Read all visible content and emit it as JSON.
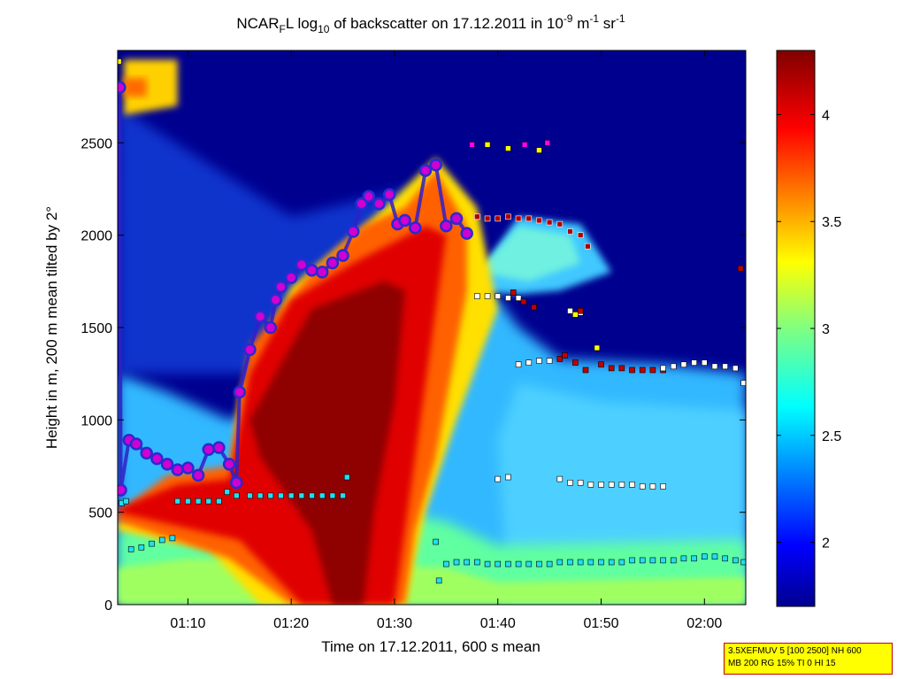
{
  "title": {
    "parts": [
      {
        "text": "NCAR",
        "baseline": "normal"
      },
      {
        "text": "F",
        "baseline": "sub"
      },
      {
        "text": "L log",
        "baseline": "normal"
      },
      {
        "text": "10",
        "baseline": "sub"
      },
      {
        "text": " of backscatter on 17.12.2011 in 10",
        "baseline": "normal"
      },
      {
        "text": "-9",
        "baseline": "super"
      },
      {
        "text": " m",
        "baseline": "normal"
      },
      {
        "text": "-1",
        "baseline": "super"
      },
      {
        "text": " sr",
        "baseline": "normal"
      },
      {
        "text": "-1",
        "baseline": "super"
      }
    ]
  },
  "info_box": {
    "line1": "3.5XEFMUV 5 [100 2500] NH 600",
    "line2": "MB 200 RG 15% TI 0 HI 15"
  },
  "chart_data": {
    "type": "heatmap",
    "xlabel": "Time on 17.12.2011, 600 s mean",
    "ylabel": "Height in m, 200 m mean tilted by 2°",
    "x_unit": "minutes since 01:00",
    "xlim": [
      3.2,
      64.0
    ],
    "ylim": [
      0,
      3000
    ],
    "xticks": [
      {
        "value": 10,
        "label": "01:10"
      },
      {
        "value": 20,
        "label": "01:20"
      },
      {
        "value": 30,
        "label": "01:30"
      },
      {
        "value": 40,
        "label": "01:40"
      },
      {
        "value": 50,
        "label": "01:50"
      },
      {
        "value": 60,
        "label": "02:00"
      }
    ],
    "yticks": [
      {
        "value": 0,
        "label": "0"
      },
      {
        "value": 500,
        "label": "500"
      },
      {
        "value": 1000,
        "label": "1000"
      },
      {
        "value": 1500,
        "label": "1500"
      },
      {
        "value": 2000,
        "label": "2000"
      },
      {
        "value": 2500,
        "label": "2500"
      }
    ],
    "colorbar": {
      "colormap": "jet",
      "clim": [
        1.7,
        4.3
      ],
      "ticks": [
        {
          "value": 2,
          "label": "2"
        },
        {
          "value": 2.5,
          "label": "2.5"
        },
        {
          "value": 3,
          "label": "3"
        },
        {
          "value": 3.5,
          "label": "3.5"
        },
        {
          "value": 4,
          "label": "4"
        }
      ]
    },
    "grid": false,
    "features": [
      {
        "kind": "top_of_layer",
        "points": [
          [
            3.4,
            2800
          ],
          [
            3.5,
            620
          ],
          [
            4.3,
            890
          ],
          [
            5.0,
            870
          ],
          [
            6.0,
            820
          ],
          [
            7.0,
            790
          ],
          [
            8.0,
            760
          ],
          [
            9.0,
            730
          ],
          [
            10.0,
            740
          ],
          [
            11.0,
            700
          ],
          [
            12.0,
            840
          ],
          [
            13.0,
            850
          ],
          [
            14.0,
            760
          ],
          [
            14.7,
            660
          ],
          [
            15.0,
            1150
          ],
          [
            16.0,
            1380
          ],
          [
            17.0,
            1560
          ],
          [
            18.0,
            1500
          ],
          [
            18.5,
            1650
          ],
          [
            19.0,
            1720
          ],
          [
            20.0,
            1770
          ],
          [
            21.0,
            1840
          ],
          [
            22.0,
            1810
          ],
          [
            23.0,
            1800
          ],
          [
            24.0,
            1850
          ],
          [
            25.0,
            1890
          ],
          [
            26.0,
            2020
          ],
          [
            26.8,
            2170
          ],
          [
            27.5,
            2210
          ],
          [
            28.5,
            2170
          ],
          [
            29.5,
            2220
          ],
          [
            30.3,
            2060
          ],
          [
            31.0,
            2080
          ],
          [
            32.0,
            2040
          ],
          [
            33.0,
            2350
          ],
          [
            34.0,
            2380
          ],
          [
            35.0,
            2050
          ],
          [
            36.0,
            2090
          ],
          [
            37.0,
            2010
          ]
        ]
      },
      {
        "kind": "layer_top_dark_red",
        "points": [
          [
            38.0,
            2100
          ],
          [
            39.0,
            2090
          ],
          [
            40.0,
            2090
          ],
          [
            41.0,
            2100
          ],
          [
            42.0,
            2090
          ],
          [
            43.0,
            2090
          ],
          [
            44.0,
            2080
          ],
          [
            45.0,
            2070
          ],
          [
            46.0,
            2060
          ],
          [
            47.0,
            2020
          ],
          [
            48.0,
            2000
          ],
          [
            48.7,
            1940
          ]
        ]
      },
      {
        "kind": "white_squares_high",
        "points": [
          [
            38.0,
            1670
          ],
          [
            39.0,
            1670
          ],
          [
            40.0,
            1670
          ],
          [
            41.0,
            1660
          ],
          [
            42.0,
            1660
          ],
          [
            47.0,
            1590
          ],
          [
            48.0,
            1580
          ]
        ]
      },
      {
        "kind": "dark_red_mid",
        "points": [
          [
            41.5,
            1690
          ],
          [
            42.5,
            1640
          ],
          [
            43.5,
            1610
          ],
          [
            48.0,
            1590
          ],
          [
            46.0,
            1330
          ],
          [
            46.5,
            1350
          ],
          [
            47.5,
            1310
          ],
          [
            48.5,
            1270
          ],
          [
            50.0,
            1300
          ],
          [
            51.0,
            1280
          ],
          [
            52.0,
            1280
          ],
          [
            53.0,
            1270
          ],
          [
            54.0,
            1270
          ],
          [
            55.0,
            1270
          ],
          [
            56.0,
            1270
          ],
          [
            63.5,
            1820
          ]
        ]
      },
      {
        "kind": "white_squares_mid",
        "points": [
          [
            42.0,
            1300
          ],
          [
            43.0,
            1310
          ],
          [
            44.0,
            1320
          ],
          [
            45.0,
            1320
          ],
          [
            56.0,
            1280
          ],
          [
            57.0,
            1290
          ],
          [
            58.0,
            1300
          ],
          [
            59.0,
            1310
          ],
          [
            60.0,
            1310
          ],
          [
            61.0,
            1290
          ],
          [
            62.0,
            1290
          ],
          [
            63.0,
            1280
          ],
          [
            63.8,
            1200
          ]
        ]
      },
      {
        "kind": "white_squares_low",
        "points": [
          [
            40.0,
            680
          ],
          [
            41.0,
            690
          ],
          [
            46.0,
            680
          ],
          [
            47.0,
            660
          ],
          [
            48.0,
            660
          ],
          [
            49.0,
            650
          ],
          [
            50.0,
            650
          ],
          [
            51.0,
            650
          ],
          [
            52.0,
            650
          ],
          [
            53.0,
            650
          ],
          [
            54.0,
            640
          ],
          [
            55.0,
            640
          ],
          [
            56.0,
            640
          ]
        ]
      },
      {
        "kind": "cyan_squares_boundary",
        "points": [
          [
            3.6,
            550
          ],
          [
            4.0,
            560
          ],
          [
            4.5,
            300
          ],
          [
            5.5,
            310
          ],
          [
            6.5,
            330
          ],
          [
            7.5,
            350
          ],
          [
            8.5,
            360
          ],
          [
            9.0,
            560
          ],
          [
            10.0,
            560
          ],
          [
            11.0,
            560
          ],
          [
            12.0,
            560
          ],
          [
            13.0,
            560
          ],
          [
            13.8,
            610
          ],
          [
            14.7,
            590
          ],
          [
            16.0,
            590
          ],
          [
            17.0,
            590
          ],
          [
            18.0,
            590
          ],
          [
            19.0,
            590
          ],
          [
            20.0,
            590
          ],
          [
            21.0,
            590
          ],
          [
            22.0,
            590
          ],
          [
            23.0,
            590
          ],
          [
            24.0,
            590
          ],
          [
            25.0,
            590
          ],
          [
            25.4,
            690
          ],
          [
            34.0,
            340
          ],
          [
            34.3,
            130
          ],
          [
            35.0,
            220
          ],
          [
            36.0,
            230
          ],
          [
            37.0,
            230
          ],
          [
            38.0,
            230
          ],
          [
            39.0,
            220
          ],
          [
            40.0,
            220
          ],
          [
            41.0,
            220
          ],
          [
            42.0,
            220
          ],
          [
            43.0,
            220
          ],
          [
            44.0,
            220
          ],
          [
            45.0,
            220
          ],
          [
            46.0,
            230
          ],
          [
            47.0,
            230
          ],
          [
            48.0,
            230
          ],
          [
            49.0,
            230
          ],
          [
            50.0,
            230
          ],
          [
            51.0,
            230
          ],
          [
            52.0,
            230
          ],
          [
            53.0,
            240
          ],
          [
            54.0,
            240
          ],
          [
            55.0,
            240
          ],
          [
            56.0,
            240
          ],
          [
            57.0,
            240
          ],
          [
            58.0,
            250
          ],
          [
            59.0,
            250
          ],
          [
            60.0,
            260
          ],
          [
            61.0,
            260
          ],
          [
            62.0,
            250
          ],
          [
            63.0,
            240
          ],
          [
            63.8,
            230
          ]
        ]
      },
      {
        "kind": "yellow_squares",
        "points": [
          [
            3.3,
            2940
          ],
          [
            39.0,
            2490
          ],
          [
            41.0,
            2470
          ],
          [
            44.0,
            2460
          ],
          [
            47.5,
            1570
          ],
          [
            49.6,
            1390
          ]
        ]
      },
      {
        "kind": "magenta_squares",
        "points": [
          [
            37.5,
            2490
          ],
          [
            42.6,
            2490
          ],
          [
            44.8,
            2500
          ]
        ]
      }
    ]
  }
}
